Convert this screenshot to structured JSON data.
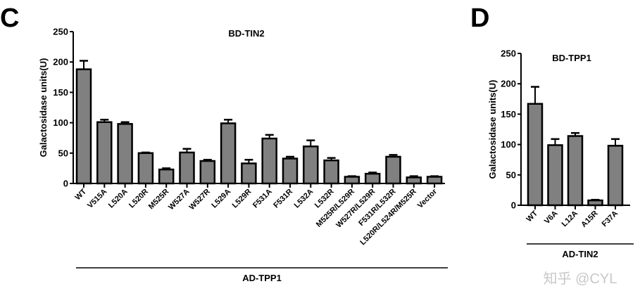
{
  "chart_data": [
    {
      "type": "bar",
      "panel_label": "C",
      "title": "BD-TIN2",
      "xlabel": "AD-TPP1",
      "ylabel": "Galactosidase units(U)",
      "ylim": [
        0,
        250
      ],
      "yticks": [
        0,
        50,
        100,
        150,
        200,
        250
      ],
      "categories": [
        "WT",
        "V515A",
        "L520A",
        "L520R",
        "M525R",
        "W527A",
        "W527R",
        "L529A",
        "L529R",
        "F531A",
        "F531R",
        "L532A",
        "L532R",
        "M525R/L529R",
        "W527R/L529R",
        "F531R/L532R",
        "L520R/L524R/M525R",
        "Vector"
      ],
      "values": [
        188,
        101,
        98,
        50,
        23,
        51,
        37,
        99,
        33,
        74,
        41,
        61,
        38,
        11,
        16,
        44,
        10,
        11
      ],
      "errors": [
        14,
        4,
        3,
        1,
        2,
        6,
        2,
        6,
        6,
        6,
        3,
        10,
        4,
        1,
        2,
        3,
        2,
        1
      ],
      "bar_color": "#808080",
      "grid": false
    },
    {
      "type": "bar",
      "panel_label": "D",
      "title": "BD-TPP1",
      "xlabel": "AD-TIN2",
      "ylabel": "Galactosidase units(U)",
      "ylim": [
        0,
        250
      ],
      "yticks": [
        0,
        50,
        100,
        150,
        200,
        250
      ],
      "categories": [
        "WT",
        "V6A",
        "L12A",
        "A15R",
        "F37A"
      ],
      "values": [
        167,
        99,
        114,
        8,
        98
      ],
      "errors": [
        28,
        10,
        5,
        1,
        11
      ],
      "bar_color": "#808080",
      "grid": false
    }
  ],
  "watermark": "知乎 @CYL"
}
